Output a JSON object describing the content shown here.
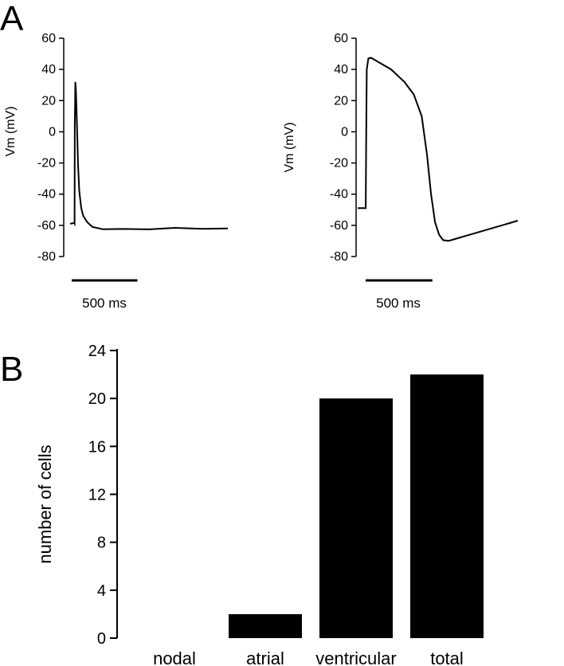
{
  "panels": {
    "a": "A",
    "b": "B"
  },
  "chart_data": [
    {
      "type": "line",
      "ylabel": "Vm (mV)",
      "ylim": [
        -80,
        60
      ],
      "yticks": [
        "60",
        "40",
        "20",
        "0",
        "-20",
        "-40",
        "-60",
        "-80"
      ],
      "scale_bar_label": "500 ms",
      "scale_bar_ms": 500,
      "series": [
        {
          "x": [
            0,
            30,
            34,
            36,
            40,
            45,
            52,
            60,
            70,
            85,
            100,
            130,
            170,
            250,
            400,
            600,
            800,
            1000,
            1200
          ],
          "y": [
            -59,
            -58.5,
            -59,
            5,
            32,
            25,
            5,
            -20,
            -38,
            -49,
            -54,
            -58,
            -61,
            -62.5,
            -62.3,
            -62.6,
            -61.6,
            -62.2,
            -62
          ]
        }
      ]
    },
    {
      "type": "line",
      "ylabel": "Vm (mV)",
      "ylim": [
        -80,
        60
      ],
      "yticks": [
        "60",
        "40",
        "20",
        "0",
        "-20",
        "-40",
        "-60",
        "-80"
      ],
      "scale_bar_label": "500 ms",
      "scale_bar_ms": 500,
      "series": [
        {
          "x": [
            0,
            60,
            63,
            68,
            80,
            100,
            150,
            250,
            350,
            420,
            480,
            520,
            550,
            580,
            610,
            640,
            680,
            720,
            760,
            800,
            900,
            1000,
            1100,
            1200
          ],
          "y": [
            -49,
            -49,
            -10,
            40,
            47,
            47.5,
            45,
            40,
            32,
            24,
            10,
            -15,
            -40,
            -58,
            -66,
            -69.5,
            -70,
            -69,
            -68,
            -67,
            -64.5,
            -62,
            -59.5,
            -57
          ]
        }
      ]
    },
    {
      "type": "bar",
      "categories": [
        "nodal",
        "atrial",
        "ventricular",
        "total"
      ],
      "values": [
        0,
        2,
        20,
        22
      ],
      "ylabel": "number of cells",
      "ylim": [
        0,
        24
      ],
      "yticks": [
        "0",
        "4",
        "8",
        "12",
        "16",
        "20",
        "24"
      ]
    }
  ]
}
